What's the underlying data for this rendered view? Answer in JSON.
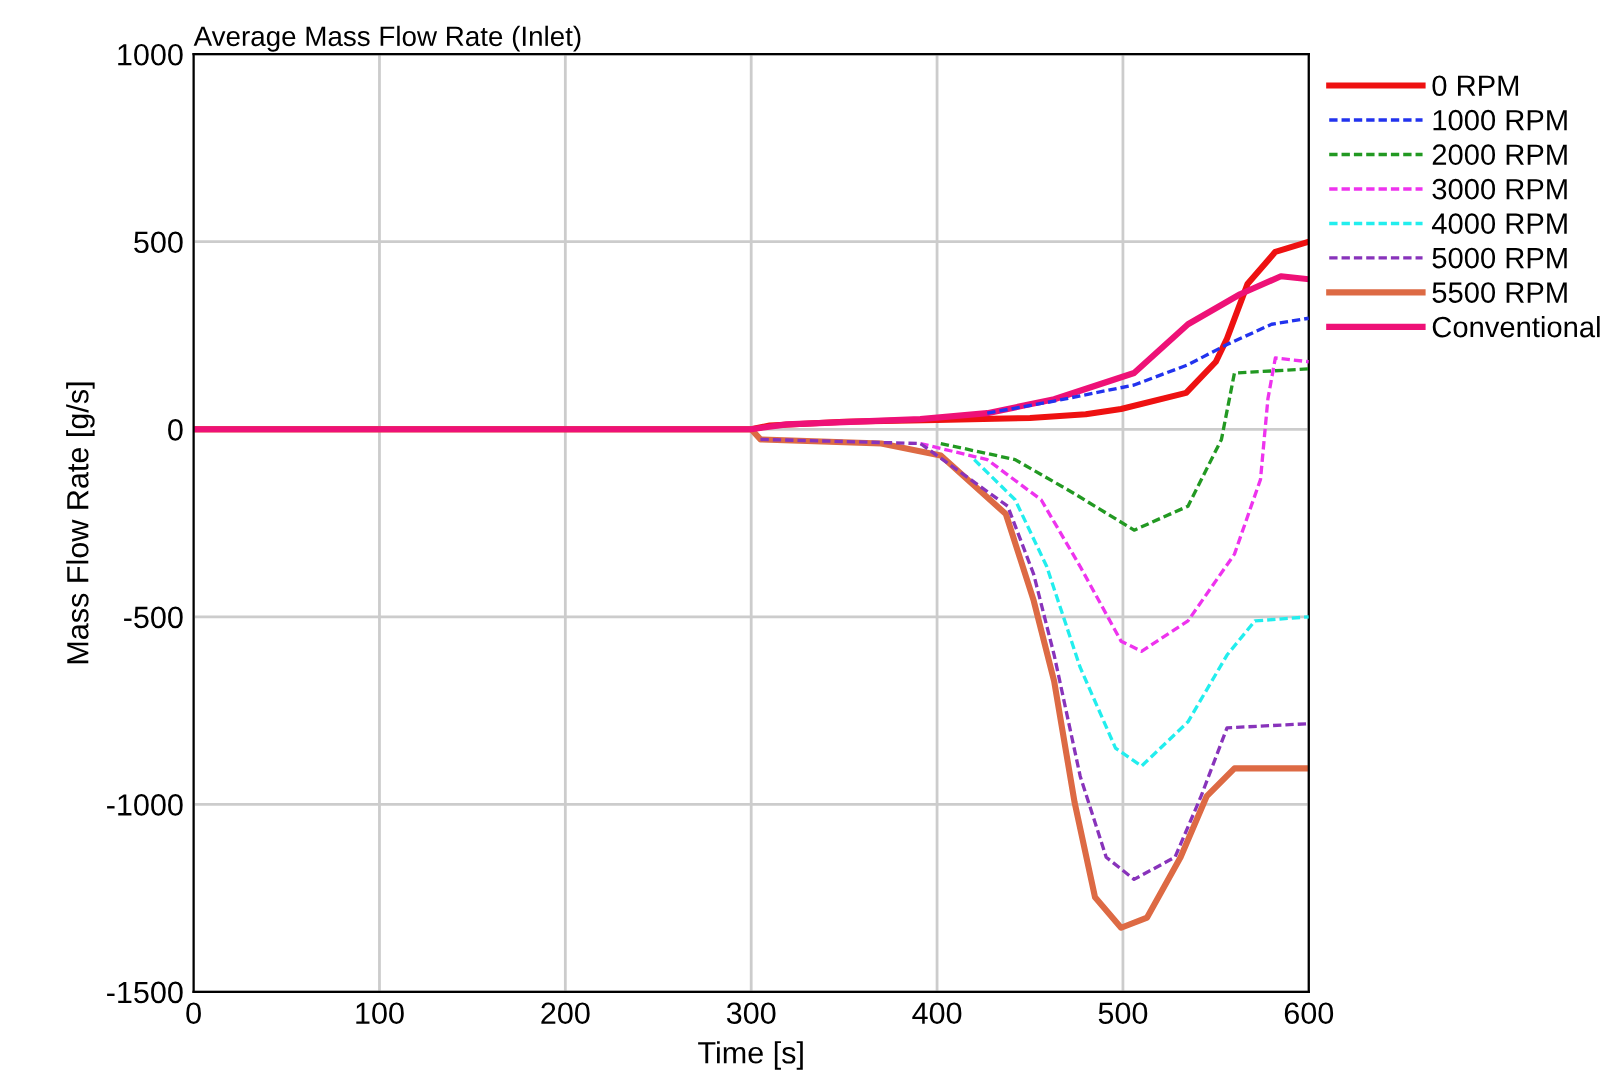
{
  "chart_data": {
    "type": "line",
    "title": "Average Mass Flow Rate (Inlet)",
    "xlabel": "Time [s]",
    "ylabel": "Mass Flow Rate [g/s]",
    "xlim": [
      0,
      600
    ],
    "xticks": [
      0,
      100,
      200,
      300,
      400,
      500,
      600
    ],
    "ylim": [
      -1500,
      1000
    ],
    "yticks": [
      -1500,
      -1000,
      -500,
      0,
      500,
      1000
    ],
    "grid": true,
    "legend": "top right",
    "marker": "none",
    "series": [
      {
        "name": "0 RPM",
        "color": "#ee1111",
        "line_style": "solid",
        "x": [
          0,
          300,
          310,
          350,
          400,
          450,
          480,
          499,
          534,
          550,
          556,
          567,
          582,
          600
        ],
        "values": [
          0,
          0,
          10,
          20,
          25,
          30,
          40,
          54,
          97,
          180,
          242,
          387,
          473,
          500
        ]
      },
      {
        "name": "1000 RPM",
        "color": "#2233ee",
        "line_style": "dashed",
        "x": [
          427,
          463,
          506,
          535,
          556,
          580,
          600
        ],
        "values": [
          43,
          75,
          118,
          172,
          226,
          280,
          296
        ]
      },
      {
        "name": "2000 RPM",
        "color": "#229922",
        "line_style": "dashed",
        "x": [
          402,
          442,
          474,
          506,
          535,
          553,
          560,
          600
        ],
        "values": [
          -38,
          -81,
          -172,
          -269,
          -205,
          -27,
          150,
          161
        ]
      },
      {
        "name": "3000 RPM",
        "color": "#ee33ee",
        "line_style": "dashed",
        "x": [
          391,
          427,
          456,
          477,
          499,
          510,
          535,
          560,
          574,
          578,
          582,
          600
        ],
        "values": [
          -38,
          -81,
          -188,
          -366,
          -565,
          -592,
          -511,
          -333,
          -134,
          81,
          190,
          180
        ]
      },
      {
        "name": "4000 RPM",
        "color": "#22eeee",
        "line_style": "dashed",
        "x": [
          420,
          442,
          459,
          477,
          496,
          510,
          535,
          556,
          571,
          600
        ],
        "values": [
          -81,
          -188,
          -366,
          -635,
          -850,
          -898,
          -780,
          -602,
          -511,
          -500
        ]
      },
      {
        "name": "5000 RPM",
        "color": "#8833bb",
        "line_style": "dashed",
        "x": [
          305,
          391,
          438,
          452,
          463,
          477,
          491,
          506,
          528,
          542,
          556,
          600
        ],
        "values": [
          -27,
          -38,
          -205,
          -387,
          -602,
          -925,
          -1141,
          -1200,
          -1141,
          -979,
          -796,
          -785
        ]
      },
      {
        "name": "5500 RPM",
        "color": "#dd6a44",
        "line_style": "solid",
        "x": [
          0,
          300,
          305,
          370,
          402,
          437,
          452,
          463,
          474,
          485,
          499,
          513,
          531,
          545,
          560,
          600
        ],
        "values": [
          0,
          0,
          -27,
          -38,
          -70,
          -226,
          -457,
          -672,
          -995,
          -1248,
          -1329,
          -1302,
          -1141,
          -979,
          -904,
          -904
        ]
      },
      {
        "name": "Conventional",
        "color": "#ee1177",
        "line_style": "solid",
        "x": [
          0,
          300,
          319,
          391,
          427,
          463,
          506,
          535,
          563,
          585,
          600
        ],
        "values": [
          0,
          0,
          13,
          27,
          43,
          80,
          150,
          280,
          360,
          408,
          400
        ]
      }
    ]
  }
}
